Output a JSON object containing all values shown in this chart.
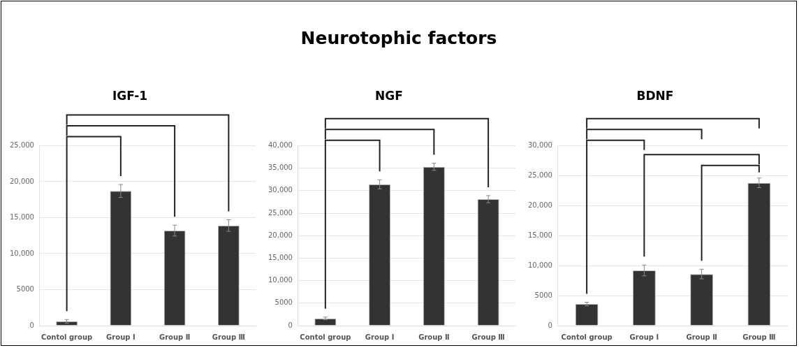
{
  "chart_data": [
    {
      "type": "other",
      "title": "Neurotophic factors"
    },
    {
      "type": "bar",
      "title": "IGF-1",
      "categories": [
        "Contol group",
        "Group Ⅰ",
        "Group Ⅱ",
        "Group Ⅲ"
      ],
      "values": [
        600,
        18700,
        13200,
        13900
      ],
      "errors": [
        250,
        900,
        750,
        800
      ],
      "color": "#333333",
      "ylim": [
        0,
        25000
      ],
      "yticks": [
        {
          "value": 0,
          "label": "0"
        },
        {
          "value": 5000,
          "label": "5000"
        },
        {
          "value": 10000,
          "label": "10,000"
        },
        {
          "value": 15000,
          "label": "15,000"
        },
        {
          "value": 20000,
          "label": "20,000"
        },
        {
          "value": 25000,
          "label": "25,000"
        }
      ],
      "grid": "y"
    },
    {
      "type": "bar",
      "title": "NGF",
      "categories": [
        "Contol group",
        "Group Ⅰ",
        "Group Ⅱ",
        "Group Ⅲ"
      ],
      "values": [
        1600,
        31400,
        35300,
        28100
      ],
      "errors": [
        300,
        1000,
        800,
        800
      ],
      "color": "#333333",
      "ylim": [
        0,
        40000
      ],
      "yticks": [
        {
          "value": 0,
          "label": "0"
        },
        {
          "value": 5000,
          "label": "5000"
        },
        {
          "value": 10000,
          "label": "10,000"
        },
        {
          "value": 15000,
          "label": "15,000"
        },
        {
          "value": 20000,
          "label": "20,000"
        },
        {
          "value": 25000,
          "label": "25,000"
        },
        {
          "value": 30000,
          "label": "30,000"
        },
        {
          "value": 35000,
          "label": "35,000"
        },
        {
          "value": 40000,
          "label": "40,000"
        }
      ],
      "grid": "y"
    },
    {
      "type": "bar",
      "title": "BDNF",
      "categories": [
        "Contol group",
        "Group Ⅰ",
        "Group Ⅱ",
        "Group Ⅲ"
      ],
      "values": [
        3600,
        9200,
        8600,
        23800
      ],
      "errors": [
        300,
        900,
        800,
        800
      ],
      "color": "#333333",
      "ylim": [
        0,
        30000
      ],
      "yticks": [
        {
          "value": 0,
          "label": "0"
        },
        {
          "value": 5000,
          "label": "5000"
        },
        {
          "value": 10000,
          "label": "10,000"
        },
        {
          "value": 15000,
          "label": "15,000"
        },
        {
          "value": 20000,
          "label": "20,000"
        },
        {
          "value": 25000,
          "label": "25,000"
        },
        {
          "value": 30000,
          "label": "30,000"
        }
      ],
      "grid": "y"
    }
  ]
}
